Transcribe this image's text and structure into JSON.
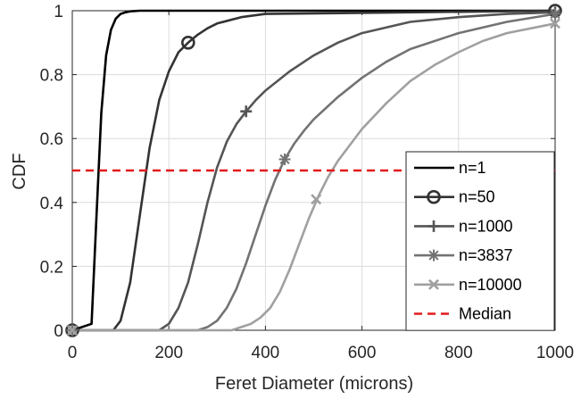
{
  "chart_data": {
    "type": "line",
    "title": "",
    "xlabel": "Feret Diameter (microns)",
    "ylabel": "CDF",
    "xlim": [
      0,
      1000
    ],
    "ylim": [
      0,
      1
    ],
    "xticks": [
      0,
      200,
      400,
      600,
      800,
      1000
    ],
    "yticks": [
      0,
      0.2,
      0.4,
      0.6,
      0.8,
      1
    ],
    "xtick_labels": [
      "0",
      "200",
      "400",
      "600",
      "800",
      "1000"
    ],
    "ytick_labels": [
      "0",
      "0.2",
      "0.4",
      "0.6",
      "0.8",
      "1"
    ],
    "grid": true,
    "legend_position": "lower-right",
    "series": [
      {
        "name": "n=1",
        "color": "#000000",
        "marker": "none",
        "x": [
          0,
          40,
          50,
          60,
          70,
          80,
          90,
          100,
          110,
          120,
          140,
          160,
          1000
        ],
        "y": [
          0,
          0.02,
          0.35,
          0.68,
          0.86,
          0.94,
          0.975,
          0.99,
          0.995,
          0.998,
          1.0,
          1.0,
          1.0
        ]
      },
      {
        "name": "n=50",
        "color": "#333333",
        "marker": "circle",
        "x": [
          0,
          85,
          100,
          120,
          140,
          160,
          180,
          200,
          220,
          240,
          260,
          280,
          300,
          350,
          400,
          1000
        ],
        "y": [
          0,
          0.0,
          0.03,
          0.15,
          0.36,
          0.57,
          0.72,
          0.81,
          0.87,
          0.9,
          0.925,
          0.945,
          0.96,
          0.98,
          0.99,
          1.0
        ],
        "markers": [
          [
            0,
            0
          ],
          [
            240,
            0.9
          ],
          [
            1000,
            1.0
          ]
        ]
      },
      {
        "name": "n=1000",
        "color": "#555555",
        "marker": "plus",
        "x": [
          0,
          180,
          200,
          220,
          240,
          260,
          280,
          300,
          320,
          340,
          360,
          380,
          400,
          450,
          500,
          550,
          600,
          700,
          800,
          900,
          1000
        ],
        "y": [
          0,
          0.0,
          0.02,
          0.07,
          0.15,
          0.27,
          0.4,
          0.51,
          0.59,
          0.645,
          0.685,
          0.72,
          0.75,
          0.81,
          0.86,
          0.9,
          0.93,
          0.965,
          0.98,
          0.99,
          0.995
        ],
        "markers": [
          [
            0,
            0
          ],
          [
            360,
            0.685
          ],
          [
            1000,
            0.995
          ]
        ]
      },
      {
        "name": "n=3837",
        "color": "#737373",
        "marker": "asterisk",
        "x": [
          0,
          260,
          280,
          300,
          320,
          340,
          360,
          380,
          400,
          420,
          440,
          460,
          480,
          500,
          550,
          600,
          650,
          700,
          800,
          900,
          1000
        ],
        "y": [
          0,
          0.0,
          0.01,
          0.03,
          0.07,
          0.13,
          0.21,
          0.3,
          0.39,
          0.47,
          0.535,
          0.585,
          0.625,
          0.66,
          0.73,
          0.79,
          0.84,
          0.88,
          0.93,
          0.965,
          0.99
        ],
        "markers": [
          [
            0,
            0
          ],
          [
            440,
            0.535
          ],
          [
            1000,
            0.99
          ]
        ]
      },
      {
        "name": "n=10000",
        "color": "#a0a0a0",
        "marker": "cross",
        "x": [
          0,
          330,
          350,
          370,
          390,
          410,
          430,
          450,
          470,
          490,
          510,
          530,
          550,
          600,
          650,
          700,
          750,
          800,
          850,
          900,
          1000
        ],
        "y": [
          0,
          0.0,
          0.01,
          0.02,
          0.04,
          0.07,
          0.12,
          0.19,
          0.27,
          0.35,
          0.42,
          0.48,
          0.53,
          0.63,
          0.71,
          0.78,
          0.83,
          0.87,
          0.905,
          0.93,
          0.96
        ],
        "markers": [
          [
            0,
            0
          ],
          [
            505,
            0.41
          ],
          [
            1000,
            0.96
          ]
        ]
      },
      {
        "name": "Median",
        "color": "#e31a1c",
        "marker": "none",
        "dashed": true,
        "x": [
          0,
          1000
        ],
        "y": [
          0.5,
          0.5
        ]
      }
    ]
  }
}
